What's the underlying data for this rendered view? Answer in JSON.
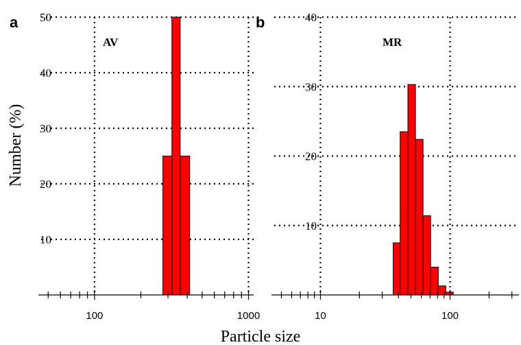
{
  "ylabel": "Number (%)",
  "xlabel": "Particle size",
  "chart_data": [
    {
      "type": "bar",
      "panel": "a",
      "title": "AV",
      "xscale": "log",
      "xlim": [
        45,
        1080
      ],
      "ylim": [
        0,
        50
      ],
      "xticks": [
        100,
        1000
      ],
      "xtick_labels": [
        "100",
        "1000"
      ],
      "yticks": [
        10,
        20,
        30,
        40,
        50
      ],
      "ytick_labels": [
        "10",
        "20",
        "30",
        "40",
        "50"
      ],
      "grid": true,
      "bins": [
        {
          "x0": 278,
          "x1": 318,
          "value": 25
        },
        {
          "x0": 318,
          "x1": 360,
          "value": 50
        },
        {
          "x0": 360,
          "x1": 415,
          "value": 25
        }
      ]
    },
    {
      "type": "bar",
      "panel": "b",
      "title": "MR",
      "xscale": "log",
      "xlim": [
        4.4,
        340
      ],
      "ylim": [
        0,
        40
      ],
      "xticks": [
        10,
        100
      ],
      "xtick_labels": [
        "10",
        "100"
      ],
      "yticks": [
        10,
        20,
        30,
        40
      ],
      "ytick_labels": [
        "10",
        "20",
        "30",
        "40"
      ],
      "grid": true,
      "bins": [
        {
          "x0": 36.4,
          "x1": 41.2,
          "value": 7.5
        },
        {
          "x0": 41.2,
          "x1": 47.3,
          "value": 23.5
        },
        {
          "x0": 47.3,
          "x1": 54.1,
          "value": 30.3
        },
        {
          "x0": 54.1,
          "x1": 61.9,
          "value": 22.4
        },
        {
          "x0": 61.9,
          "x1": 70.8,
          "value": 11.4
        },
        {
          "x0": 70.8,
          "x1": 81.1,
          "value": 4.0
        },
        {
          "x0": 81.1,
          "x1": 92.7,
          "value": 1.3
        },
        {
          "x0": 92.7,
          "x1": 106,
          "value": 0.4
        }
      ]
    }
  ]
}
